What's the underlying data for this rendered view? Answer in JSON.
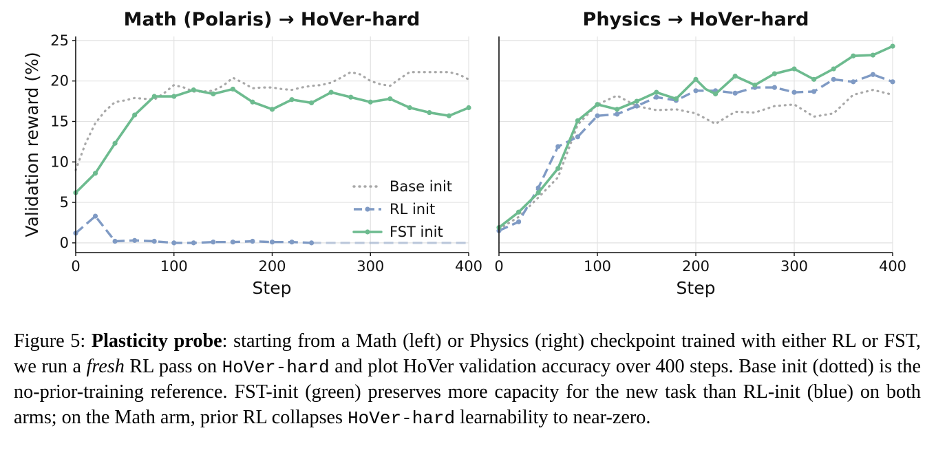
{
  "colors": {
    "base": "#a8a8a8",
    "rl": "#7f9ac4",
    "fst": "#6dbb8f",
    "grid": "#e2e2e2"
  },
  "legend": {
    "base": "Base init",
    "rl": "RL init",
    "fst": "FST init"
  },
  "chart_data": [
    {
      "type": "line",
      "title": "Math (Polaris) → HoVer-hard",
      "xlabel": "Step",
      "ylabel": "Validation reward (%)",
      "xlim": [
        0,
        400
      ],
      "ylim": [
        -1.2,
        25.5
      ],
      "xticks": [
        0,
        100,
        200,
        300,
        400
      ],
      "yticks": [
        0,
        5,
        10,
        15,
        20,
        25
      ],
      "grid": true,
      "legend_position": "lower-right",
      "series": [
        {
          "name": "Base init",
          "style": "dotted",
          "markers": false,
          "x": [
            0,
            10,
            20,
            30,
            40,
            50,
            60,
            70,
            80,
            90,
            100,
            110,
            120,
            130,
            140,
            150,
            160,
            170,
            180,
            190,
            200,
            210,
            220,
            230,
            240,
            250,
            260,
            270,
            280,
            290,
            300,
            310,
            320,
            330,
            340,
            350,
            360,
            370,
            380,
            390,
            400
          ],
          "y": [
            9.0,
            12.3,
            14.8,
            16.3,
            17.4,
            17.6,
            17.9,
            17.8,
            17.7,
            18.5,
            19.5,
            19.2,
            18.7,
            18.7,
            18.8,
            19.4,
            20.4,
            19.8,
            19.1,
            19.2,
            19.2,
            19.0,
            18.9,
            19.2,
            19.4,
            19.5,
            19.8,
            20.4,
            21.1,
            20.8,
            20.0,
            19.6,
            19.4,
            20.3,
            21.1,
            21.1,
            21.1,
            21.1,
            21.1,
            20.8,
            20.2
          ]
        },
        {
          "name": "RL init",
          "style": "dashed",
          "markers": true,
          "x": [
            0,
            20,
            40,
            60,
            80,
            100,
            120,
            140,
            160,
            180,
            200,
            220,
            240
          ],
          "y": [
            1.2,
            3.3,
            0.2,
            0.3,
            0.2,
            0.0,
            0.0,
            0.1,
            0.1,
            0.2,
            0.1,
            0.1,
            0.0
          ],
          "tail_x": [
            240,
            400
          ],
          "tail_y": [
            0.0,
            0.0
          ]
        },
        {
          "name": "FST init",
          "style": "solid",
          "markers": true,
          "x": [
            0,
            20,
            40,
            60,
            80,
            100,
            120,
            140,
            160,
            180,
            200,
            220,
            240,
            260,
            280,
            300,
            320,
            340,
            360,
            380,
            400
          ],
          "y": [
            6.2,
            8.6,
            12.3,
            15.8,
            18.1,
            18.1,
            18.9,
            18.4,
            19.0,
            17.4,
            16.5,
            17.7,
            17.3,
            18.6,
            18.0,
            17.4,
            17.8,
            16.7,
            16.1,
            15.7,
            16.7
          ]
        }
      ]
    },
    {
      "type": "line",
      "title": "Physics → HoVer-hard",
      "xlabel": "Step",
      "ylabel": "",
      "xlim": [
        0,
        400
      ],
      "ylim": [
        -1.2,
        25.5
      ],
      "xticks": [
        0,
        100,
        200,
        300,
        400
      ],
      "yticks": [],
      "grid": true,
      "series": [
        {
          "name": "Base init",
          "style": "dotted",
          "markers": false,
          "x": [
            0,
            20,
            40,
            60,
            80,
            100,
            120,
            140,
            160,
            180,
            200,
            220,
            240,
            260,
            280,
            300,
            320,
            340,
            360,
            380,
            400
          ],
          "y": [
            1.7,
            3.2,
            5.6,
            8.1,
            14.6,
            17.1,
            18.2,
            16.9,
            16.4,
            16.5,
            16.0,
            14.7,
            16.2,
            16.1,
            16.9,
            17.1,
            15.6,
            16.0,
            18.3,
            18.9,
            18.3
          ]
        },
        {
          "name": "RL init",
          "style": "dashed",
          "markers": true,
          "x": [
            0,
            20,
            40,
            60,
            80,
            100,
            120,
            140,
            160,
            180,
            200,
            220,
            240,
            260,
            280,
            300,
            320,
            340,
            360,
            380,
            400
          ],
          "y": [
            1.5,
            2.6,
            6.8,
            11.9,
            13.1,
            15.7,
            15.9,
            16.9,
            18.0,
            17.6,
            18.8,
            18.8,
            18.5,
            19.2,
            19.2,
            18.6,
            18.7,
            20.2,
            19.9,
            20.8,
            19.9
          ]
        },
        {
          "name": "FST init",
          "style": "solid",
          "markers": true,
          "x": [
            0,
            20,
            40,
            60,
            80,
            100,
            110,
            120,
            140,
            160,
            170,
            180,
            200,
            210,
            220,
            240,
            260,
            280,
            300,
            320,
            340,
            350,
            360,
            380,
            400
          ],
          "y": [
            1.9,
            3.8,
            6.2,
            9.2,
            15.1,
            17.1,
            16.8,
            16.5,
            17.5,
            18.6,
            18.2,
            17.8,
            20.2,
            19.0,
            18.4,
            20.6,
            19.5,
            20.9,
            21.5,
            20.2,
            21.5,
            22.3,
            23.1,
            23.2,
            24.3
          ]
        }
      ]
    }
  ],
  "caption": {
    "prefix": "Figure 5: ",
    "lead": "Plasticity probe",
    "t1": ": starting from a Math (left) or Physics (right) checkpoint trained with either RL or FST, we run a ",
    "em": "fresh",
    "t2": " RL pass on ",
    "code1": "HoVer-hard",
    "t3": " and plot HoVer validation accuracy over 400 steps. Base init (dotted) is the no-prior-training reference. FST-init (green) preserves more capacity for the new task than RL-init (blue) on both arms; on the Math arm, prior RL collapses ",
    "code2": "HoVer-hard",
    "t4": " learnability to near-zero."
  }
}
